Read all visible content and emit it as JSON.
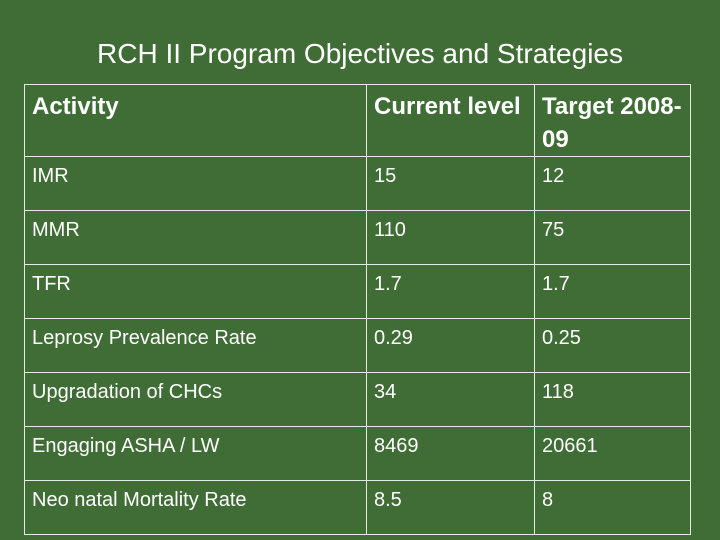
{
  "title": "RCH II Program Objectives and Strategies",
  "table": {
    "headers": [
      "Activity",
      "Current level",
      "Target 2008-09"
    ],
    "rows": [
      [
        "IMR",
        "15",
        "12"
      ],
      [
        "MMR",
        "110",
        "75"
      ],
      [
        "TFR",
        "1.7",
        "1.7"
      ],
      [
        "Leprosy Prevalence Rate",
        "0.29",
        "0.25"
      ],
      [
        "Upgradation of CHCs",
        "34",
        "118"
      ],
      [
        "Engaging ASHA / LW",
        "8469",
        "20661"
      ],
      [
        "Neo natal Mortality Rate",
        "8.5",
        "8"
      ]
    ]
  },
  "colors": {
    "background": "#3f6d35",
    "text": "#ffffff",
    "grid_lines": "#e4ece1"
  }
}
